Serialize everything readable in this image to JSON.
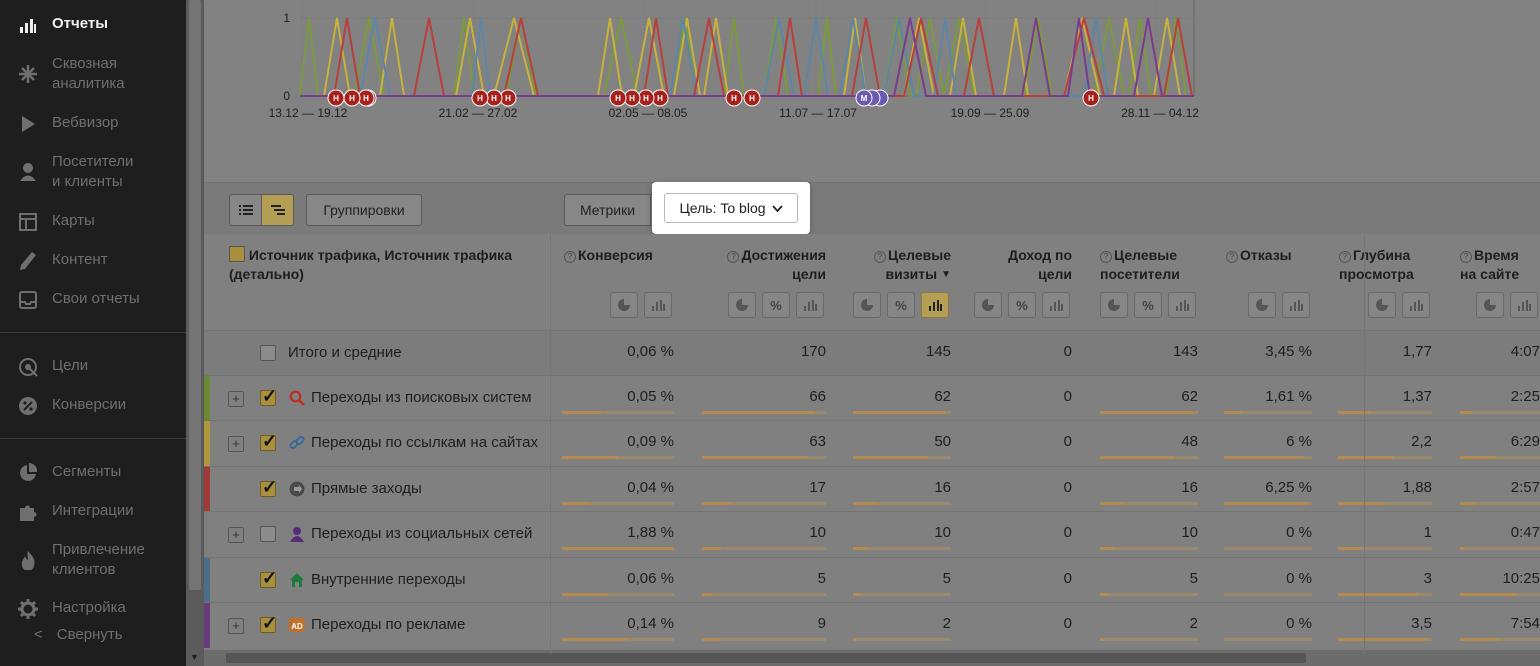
{
  "sidebar": {
    "items": [
      {
        "label": "Отчеты",
        "icon": "bar-chart-icon",
        "active": true
      },
      {
        "label": "Сквозная\nаналитика",
        "icon": "sparkle-icon"
      },
      {
        "label": "Вебвизор",
        "icon": "play-icon"
      },
      {
        "label": "Посетители\nи клиенты",
        "icon": "person-icon"
      },
      {
        "label": "Карты",
        "icon": "map-grid-icon"
      },
      {
        "label": "Контент",
        "icon": "pencil-icon"
      },
      {
        "label": "Свои отчеты",
        "icon": "inbox-icon"
      },
      {
        "label": "Цели",
        "icon": "target-icon"
      },
      {
        "label": "Конверсии",
        "icon": "conversion-icon"
      },
      {
        "label": "Сегменты",
        "icon": "pie-icon"
      },
      {
        "label": "Интеграции",
        "icon": "puzzle-icon"
      },
      {
        "label": "Привлечение\nклиентов",
        "icon": "flame-icon"
      },
      {
        "label": "Настройка",
        "icon": "gear-icon"
      }
    ],
    "collapse": {
      "arrow": "<",
      "label": "Свернуть"
    }
  },
  "chart": {
    "y_ticks": [
      "1",
      "0"
    ],
    "x_labels": [
      "13.12 — 19.12",
      "21.02 — 27.02",
      "02.05 — 08.05",
      "11.07 — 17.07",
      "19.09 — 25.09",
      "28.11 — 04.12"
    ],
    "marker_letter_h": "Н",
    "marker_letter_m": "М",
    "colors": {
      "green": "#7a9a3c",
      "yellow": "#c8b23c",
      "blue": "#5c86a8",
      "red": "#b8403c",
      "purple": "#7a3c8c"
    }
  },
  "toolbar": {
    "groupings_label": "Группировки",
    "metrics_label": "Метрики",
    "goal_label": "Цель: To blog"
  },
  "table": {
    "dim_header": "Источник трафика, Источник трафика (детально)",
    "columns": [
      {
        "title": "Конверсия",
        "help": "?"
      },
      {
        "title": "Достижения\nцели",
        "help": "?"
      },
      {
        "title": "Целевые\nвизиты",
        "help": "?",
        "sort": "▼"
      },
      {
        "title": "Доход по\nцели",
        "help": ""
      },
      {
        "title": "Целевые\nпосетители",
        "help": "?"
      },
      {
        "title": "Отказы",
        "help": "?"
      },
      {
        "title": "Глубина\nпросмотра",
        "help": "?"
      },
      {
        "title": "Время\nна сайте",
        "help": "?"
      }
    ],
    "total": {
      "label": "Итого и средние",
      "values": [
        "0,06 %",
        "170",
        "145",
        "0",
        "143",
        "3,45 %",
        "1,77",
        "4:07"
      ]
    },
    "rows": [
      {
        "label": "Переходы из поисковых систем",
        "color": "#6a8a36",
        "expandable": true,
        "checked": true,
        "icon": "search-icon",
        "values": [
          "0,05 %",
          "66",
          "62",
          "0",
          "62",
          "1,61 %",
          "1,37",
          "2:25"
        ],
        "bars": [
          0.35,
          0.9,
          0.95,
          0,
          0.95,
          0.2,
          0.35,
          0.15
        ]
      },
      {
        "label": "Переходы по ссылкам на сайтах",
        "color": "#b0963a",
        "expandable": true,
        "checked": true,
        "icon": "link-icon",
        "values": [
          "0,09 %",
          "63",
          "50",
          "0",
          "48",
          "6 %",
          "2,2",
          "6:29"
        ],
        "bars": [
          0.5,
          0.85,
          0.75,
          0,
          0.75,
          0.9,
          0.6,
          0.45
        ]
      },
      {
        "label": "Прямые заходы",
        "color": "#a03a34",
        "expandable": false,
        "checked": true,
        "icon": "direct-icon",
        "values": [
          "0,04 %",
          "17",
          "16",
          "0",
          "16",
          "6,25 %",
          "1,88",
          "2:57"
        ],
        "bars": [
          0.25,
          0.25,
          0.25,
          0,
          0.25,
          0.95,
          0.5,
          0.2
        ]
      },
      {
        "label": "Переходы из социальных сетей",
        "color": "#7f7f7f",
        "expandable": true,
        "checked": false,
        "icon": "social-icon",
        "values": [
          "1,88 %",
          "10",
          "10",
          "0",
          "10",
          "0 %",
          "1",
          "0:47"
        ],
        "bars": [
          1.0,
          0.15,
          0.15,
          0,
          0.15,
          0,
          0.25,
          0.05
        ]
      },
      {
        "label": "Внутренние переходы",
        "color": "#4a6e8c",
        "expandable": false,
        "checked": true,
        "icon": "home-icon",
        "values": [
          "0,06 %",
          "5",
          "5",
          "0",
          "5",
          "0 %",
          "3",
          "10:25"
        ],
        "bars": [
          0.4,
          0.08,
          0.08,
          0,
          0.08,
          0,
          0.85,
          0.7
        ]
      },
      {
        "label": "Переходы по рекламе",
        "color": "#6a3a7c",
        "expandable": true,
        "checked": true,
        "icon": "ad-icon",
        "values": [
          "0,14 %",
          "9",
          "2",
          "0",
          "2",
          "0 %",
          "3,5",
          "7:54"
        ],
        "bars": [
          0.6,
          0.14,
          0.03,
          0,
          0.03,
          0,
          0.95,
          0.5
        ]
      }
    ]
  }
}
